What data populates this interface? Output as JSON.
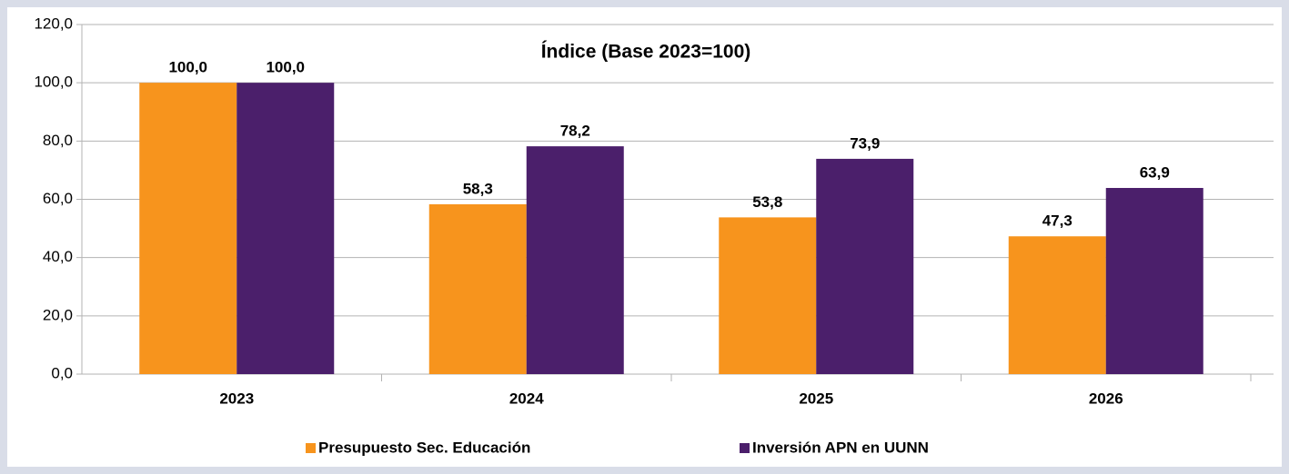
{
  "chart_data": {
    "type": "bar",
    "title": "Índice (Base 2023=100)",
    "categories": [
      "2023",
      "2024",
      "2025",
      "2026"
    ],
    "series": [
      {
        "name": "Presupuesto Sec. Educación",
        "color": "#f7941d",
        "values": [
          100.0,
          58.3,
          53.8,
          47.3
        ],
        "value_labels": [
          "100,0",
          "58,3",
          "53,8",
          "47,3"
        ]
      },
      {
        "name": "Inversión APN en UUNN",
        "color": "#4b1f6b",
        "values": [
          100.0,
          78.2,
          73.9,
          63.9
        ],
        "value_labels": [
          "100,0",
          "78,2",
          "73,9",
          "63,9"
        ]
      }
    ],
    "ylim": [
      0,
      120
    ],
    "yticks": [
      {
        "value": 0,
        "label": "0,0"
      },
      {
        "value": 20,
        "label": "20,0"
      },
      {
        "value": 40,
        "label": "40,0"
      },
      {
        "value": 60,
        "label": "60,0"
      },
      {
        "value": 80,
        "label": "80,0"
      },
      {
        "value": 100,
        "label": "100,0"
      },
      {
        "value": 120,
        "label": "120,0"
      }
    ],
    "grid": true,
    "legend": "bottom"
  }
}
